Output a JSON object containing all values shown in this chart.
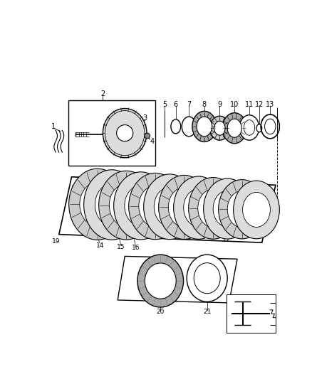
{
  "background_color": "#ffffff",
  "line_color": "#000000",
  "gray_dark": "#888888",
  "gray_med": "#aaaaaa",
  "gray_light": "#cccccc",
  "gray_lighter": "#dddddd",
  "gray_fill": "#b0b0b0"
}
